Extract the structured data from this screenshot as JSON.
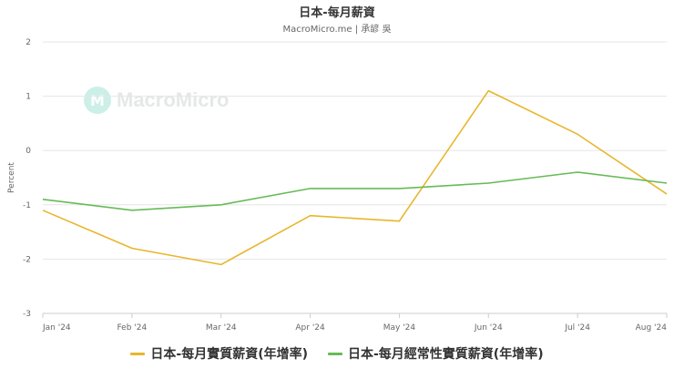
{
  "header": {
    "title": "日本-每月薪資",
    "subtitle": "MacroMicro.me | 承諺 吳"
  },
  "watermark": {
    "text": "MacroMicro",
    "icon": "macromicro-logo-icon"
  },
  "chart_data": {
    "type": "line",
    "categories": [
      "Jan '24",
      "Feb '24",
      "Mar '24",
      "Apr '24",
      "May '24",
      "Jun '24",
      "Jul '24",
      "Aug '24"
    ],
    "series": [
      {
        "name": "日本-每月實質薪資(年增率)",
        "color": "#e8b62c",
        "values": [
          -1.1,
          -1.8,
          -2.1,
          -1.2,
          -1.3,
          1.1,
          0.3,
          -0.8
        ]
      },
      {
        "name": "日本-每月經常性實質薪資(年增率)",
        "color": "#66bb55",
        "values": [
          -0.9,
          -1.1,
          -1.0,
          -0.7,
          -0.7,
          -0.6,
          -0.4,
          -0.6
        ]
      }
    ],
    "ylabel": "Percent",
    "ylim": [
      -3,
      2
    ],
    "yticks": [
      2,
      1,
      0,
      -1,
      -2,
      -3
    ],
    "grid": true,
    "legend": "bottom"
  }
}
